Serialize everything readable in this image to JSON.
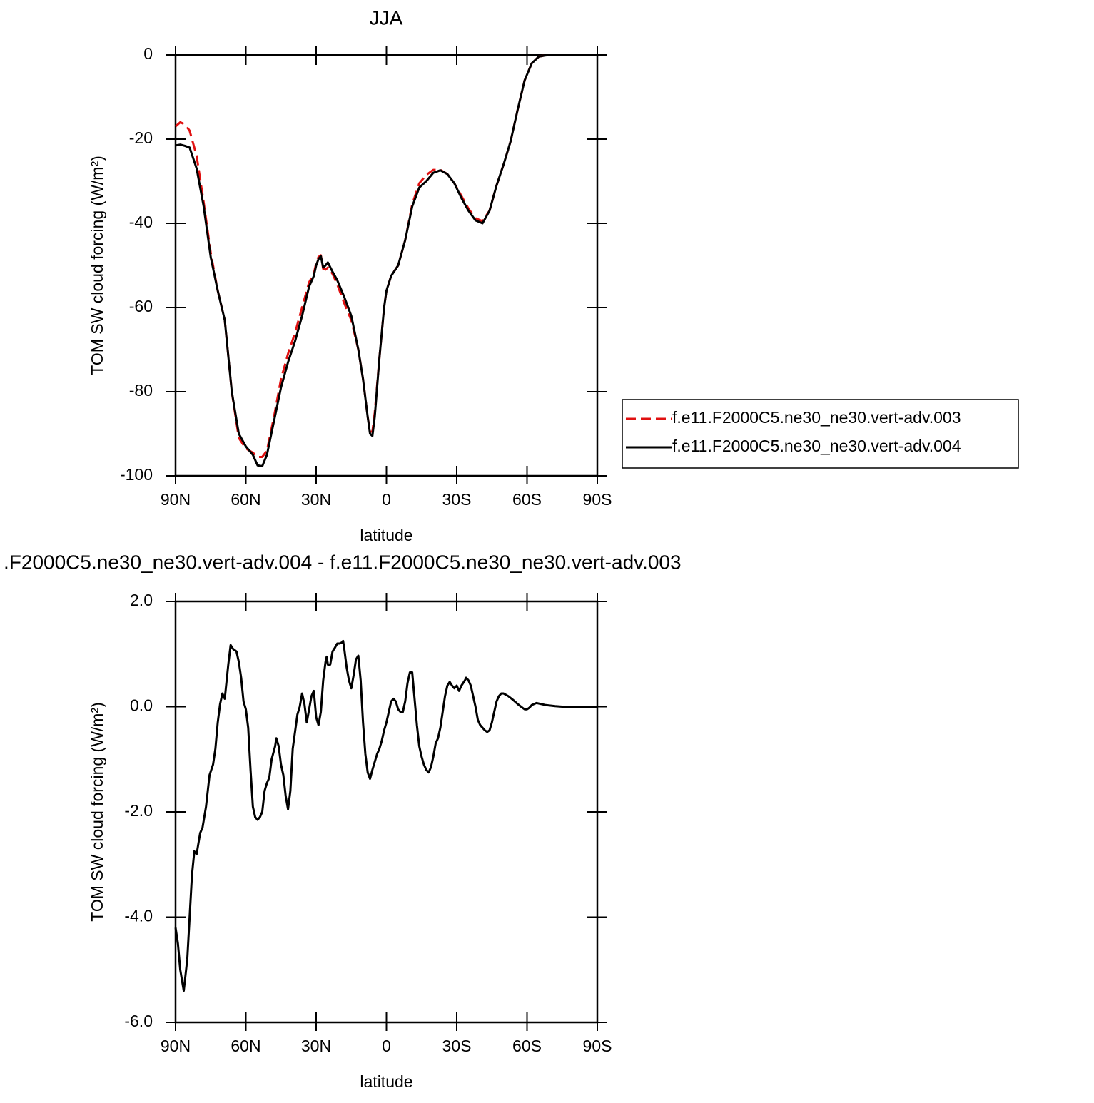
{
  "chart_data": [
    {
      "type": "line",
      "title": "JJA",
      "xlabel": "latitude",
      "ylabel": "TOM SW cloud forcing (W/m²)",
      "x": [
        90,
        88,
        86,
        84,
        81,
        78,
        75,
        72,
        69,
        66,
        63,
        60,
        57,
        55,
        53,
        51,
        48,
        45,
        42,
        39,
        36,
        33,
        31,
        30,
        29,
        28,
        27,
        26,
        25,
        23,
        21,
        18,
        15,
        12,
        10,
        8,
        7,
        6,
        5,
        3,
        1,
        0,
        -2,
        -5,
        -8,
        -11,
        -14,
        -17,
        -20,
        -23,
        -26,
        -29,
        -32,
        -35,
        -38,
        -41,
        -44,
        -47,
        -50,
        -53,
        -56,
        -59,
        -62,
        -65,
        -68,
        -72,
        -80,
        -90
      ],
      "xlim": [
        90,
        -90
      ],
      "xticks": [
        {
          "value": 90,
          "label": "90N"
        },
        {
          "value": 60,
          "label": "60N"
        },
        {
          "value": 30,
          "label": "30N"
        },
        0,
        {
          "value": -30,
          "label": "30S"
        },
        {
          "value": -60,
          "label": "60S"
        },
        {
          "value": -90,
          "label": "90S"
        }
      ],
      "ylim": [
        -100,
        0
      ],
      "yticks": [
        0,
        -20,
        -40,
        -60,
        -80,
        -100
      ],
      "legend": "right",
      "series": [
        {
          "name": "f.e11.F2000C5.ne30_ne30.vert-adv.003",
          "color": "#e01010",
          "line_style": "dashed",
          "values": [
            -17,
            -16,
            -16.5,
            -18,
            -24,
            -35,
            -47,
            -56,
            -63,
            -80,
            -91,
            -93.5,
            -94.5,
            -95.5,
            -95.5,
            -94,
            -86,
            -77,
            -71,
            -66,
            -60,
            -54,
            -52,
            -49.5,
            -48,
            -47.6,
            -50.8,
            -51,
            -50.5,
            -52,
            -54.5,
            -59,
            -63,
            -70,
            -77,
            -86,
            -89.5,
            -89.5,
            -85,
            -72,
            -60,
            -56,
            -52.5,
            -50,
            -44,
            -35.5,
            -30.5,
            -28.5,
            -27.3,
            -27.3,
            -28.3,
            -30.5,
            -33.5,
            -36.5,
            -38.8,
            -39.5,
            -37,
            -31,
            -26,
            -20.5,
            -13,
            -6,
            -2,
            -0.4,
            -0.1,
            0,
            0,
            0
          ]
        },
        {
          "name": "f.e11.F2000C5.ne30_ne30.vert-adv.004",
          "color": "#000000",
          "line_style": "solid",
          "values": [
            -21.5,
            -21.3,
            -21.6,
            -22,
            -27,
            -36,
            -48,
            -56,
            -63,
            -80,
            -90,
            -93,
            -95,
            -97.5,
            -97.7,
            -95,
            -87,
            -79,
            -73,
            -68,
            -62,
            -55,
            -52.5,
            -50,
            -48.5,
            -47.8,
            -50.5,
            -50,
            -49.3,
            -51.5,
            -53.5,
            -57.5,
            -62,
            -70,
            -77,
            -86,
            -90,
            -90.5,
            -86,
            -72,
            -60,
            -56,
            -52.5,
            -50,
            -44,
            -36,
            -31.5,
            -30,
            -28,
            -27.4,
            -28.3,
            -30.5,
            -34,
            -37,
            -39.3,
            -40,
            -37,
            -31,
            -26,
            -20.5,
            -13,
            -6,
            -2,
            -0.4,
            -0.1,
            0,
            0,
            0
          ]
        }
      ]
    },
    {
      "type": "line",
      "title": ".F2000C5.ne30_ne30.vert-adv.004 - f.e11.F2000C5.ne30_ne30.vert-adv.003",
      "xlabel": "latitude",
      "ylabel": "TOM SW cloud forcing (W/m²)",
      "x": [
        90,
        89,
        88,
        86.5,
        85,
        83,
        82,
        81,
        79.5,
        78.5,
        77,
        75.5,
        74,
        73,
        72,
        71,
        70,
        69,
        67.5,
        66.5,
        65.5,
        64,
        63,
        62,
        61,
        60,
        59,
        58,
        57,
        56,
        55,
        54,
        53,
        52,
        51,
        50,
        49,
        47.5,
        47,
        46,
        45,
        44,
        43,
        42,
        41,
        40,
        38,
        37,
        36,
        35,
        34,
        33,
        32,
        31,
        30,
        29,
        28,
        27,
        26,
        25.5,
        25,
        24,
        23,
        22,
        21,
        20,
        19,
        18.5,
        18,
        17,
        16,
        15,
        14,
        13,
        12,
        11,
        10,
        9,
        8,
        7,
        6,
        5,
        4,
        3,
        2,
        1,
        0,
        -1,
        -2,
        -3,
        -4,
        -5,
        -6,
        -7,
        -8,
        -9,
        -10,
        -11,
        -12,
        -13,
        -14,
        -15,
        -16,
        -17,
        -18,
        -19,
        -20,
        -21,
        -22,
        -23,
        -24,
        -25,
        -26,
        -27,
        -28,
        -29,
        -30,
        -31,
        -32,
        -33.5,
        -34,
        -35,
        -36,
        -37,
        -38,
        -39,
        -40,
        -41,
        -42,
        -43,
        -44,
        -45,
        -46,
        -47,
        -48,
        -49,
        -50,
        -52,
        -54,
        -56,
        -58,
        -59,
        -60,
        -61,
        -62,
        -63,
        -64,
        -66,
        -68,
        -70,
        -72,
        -75,
        -80,
        -85,
        -90
      ],
      "xlim": [
        90,
        -90
      ],
      "xticks": [
        {
          "value": 90,
          "label": "90N"
        },
        {
          "value": 60,
          "label": "60N"
        },
        {
          "value": 30,
          "label": "30N"
        },
        0,
        {
          "value": -30,
          "label": "30S"
        },
        {
          "value": -60,
          "label": "60S"
        },
        {
          "value": -90,
          "label": "90S"
        }
      ],
      "ylim": [
        -6,
        2
      ],
      "yticks": [
        {
          "value": 2,
          "label": "2.0"
        },
        {
          "value": 0,
          "label": "0.0"
        },
        {
          "value": -2,
          "label": "-2.0"
        },
        {
          "value": -4,
          "label": "-4.0"
        },
        {
          "value": -6,
          "label": "-6.0"
        }
      ],
      "series": [
        {
          "color": "#000000",
          "line_style": "solid",
          "values": [
            -4.2,
            -4.5,
            -5.0,
            -5.4,
            -4.8,
            -3.2,
            -2.75,
            -2.8,
            -2.4,
            -2.3,
            -1.9,
            -1.3,
            -1.1,
            -0.8,
            -0.3,
            0.05,
            0.25,
            0.15,
            0.8,
            1.17,
            1.1,
            1.05,
            0.85,
            0.55,
            0.1,
            -0.05,
            -0.4,
            -1.2,
            -1.9,
            -2.1,
            -2.15,
            -2.1,
            -2.0,
            -1.6,
            -1.45,
            -1.35,
            -1.0,
            -0.75,
            -0.6,
            -0.75,
            -1.1,
            -1.3,
            -1.7,
            -1.95,
            -1.6,
            -0.8,
            -0.15,
            0.0,
            0.25,
            0.05,
            -0.3,
            -0.05,
            0.2,
            0.3,
            -0.2,
            -0.35,
            -0.1,
            0.5,
            0.85,
            0.95,
            0.8,
            0.8,
            1.05,
            1.12,
            1.2,
            1.2,
            1.22,
            1.25,
            1.1,
            0.75,
            0.5,
            0.35,
            0.6,
            0.9,
            0.97,
            0.5,
            -0.3,
            -0.9,
            -1.25,
            -1.37,
            -1.2,
            -1.05,
            -0.9,
            -0.8,
            -0.65,
            -0.45,
            -0.3,
            -0.1,
            0.1,
            0.15,
            0.1,
            -0.05,
            -0.1,
            -0.1,
            0.1,
            0.45,
            0.65,
            0.65,
            0.15,
            -0.35,
            -0.75,
            -0.95,
            -1.1,
            -1.2,
            -1.25,
            -1.15,
            -0.95,
            -0.7,
            -0.6,
            -0.4,
            -0.1,
            0.2,
            0.4,
            0.47,
            0.4,
            0.35,
            0.4,
            0.3,
            0.4,
            0.5,
            0.55,
            0.5,
            0.4,
            0.2,
            0.0,
            -0.25,
            -0.35,
            -0.4,
            -0.45,
            -0.48,
            -0.45,
            -0.3,
            -0.1,
            0.1,
            0.2,
            0.25,
            0.25,
            0.2,
            0.13,
            0.05,
            -0.02,
            -0.05,
            -0.05,
            -0.02,
            0.03,
            0.05,
            0.07,
            0.05,
            0.03,
            0.02,
            0.01,
            0,
            0,
            0,
            0
          ]
        }
      ]
    }
  ]
}
